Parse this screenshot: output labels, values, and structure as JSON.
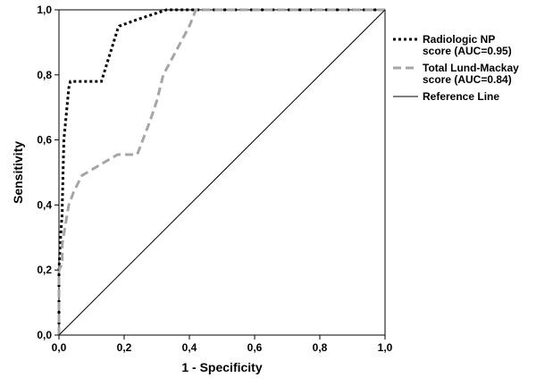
{
  "chart_data": {
    "type": "line",
    "title": "",
    "xlabel": "1 - Specificity",
    "ylabel": "Sensitivity",
    "xlim": [
      0,
      1
    ],
    "ylim": [
      0,
      1
    ],
    "xticks": [
      "0,0",
      "0,2",
      "0,4",
      "0,6",
      "0,8",
      "1,0"
    ],
    "yticks": [
      "0,0",
      "0,2",
      "0,4",
      "0,6",
      "0,8",
      "1,0"
    ],
    "grid": false,
    "legend_position": "right",
    "series": [
      {
        "name": "Radiologic NP score (AUC=0.95)",
        "legend_lines": [
          "Radiologic NP",
          "score (AUC=0.95)"
        ],
        "style": "dotted",
        "color": "#000000",
        "x": [
          0.0,
          0.0,
          0.005,
          0.01,
          0.01,
          0.015,
          0.03,
          0.035,
          0.035,
          0.13,
          0.18,
          0.185,
          0.24,
          0.3,
          0.33,
          1.0
        ],
        "y": [
          0.0,
          0.2,
          0.3,
          0.38,
          0.4,
          0.6,
          0.76,
          0.78,
          0.78,
          0.78,
          0.94,
          0.95,
          0.97,
          0.99,
          1.0,
          1.0
        ]
      },
      {
        "name": "Total Lund-Mackay score (AUC=0.84)",
        "legend_lines": [
          "Total Lund-Mackay",
          "score (AUC=0.84)"
        ],
        "style": "dashed",
        "color": "#a6a6a6",
        "x": [
          0.0,
          0.0,
          0.01,
          0.01,
          0.02,
          0.03,
          0.045,
          0.055,
          0.07,
          0.12,
          0.18,
          0.24,
          0.28,
          0.3,
          0.32,
          0.4,
          0.42,
          0.43,
          1.0
        ],
        "y": [
          0.0,
          0.2,
          0.22,
          0.28,
          0.34,
          0.4,
          0.44,
          0.46,
          0.49,
          0.52,
          0.555,
          0.555,
          0.66,
          0.72,
          0.8,
          0.95,
          1.0,
          1.0,
          1.0
        ]
      },
      {
        "name": "Reference Line",
        "legend_lines": [
          "Reference Line"
        ],
        "style": "solid",
        "color": "#000000",
        "x": [
          0,
          1
        ],
        "y": [
          0,
          1
        ]
      }
    ]
  }
}
